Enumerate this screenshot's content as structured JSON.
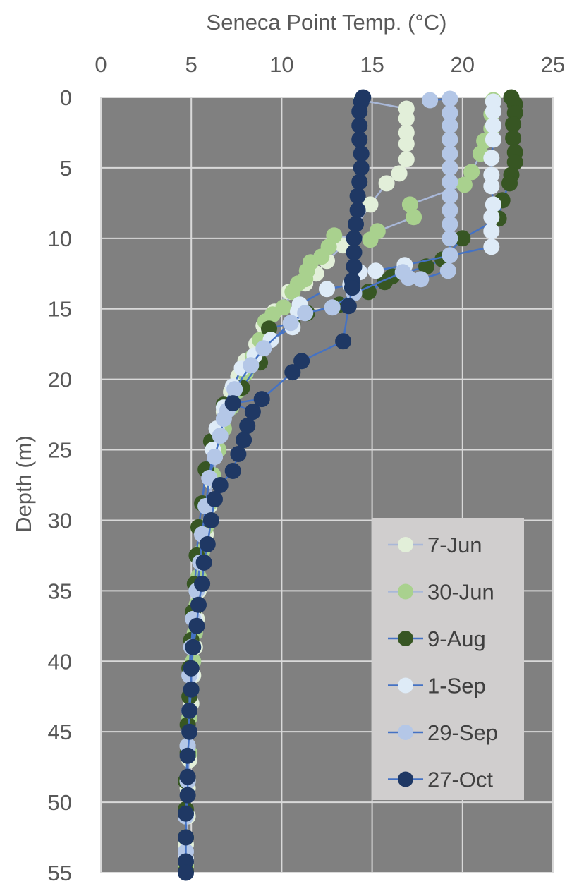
{
  "chart_data": {
    "type": "scatter",
    "title": "",
    "xlabel": "Seneca Point Temp. (°C)",
    "ylabel": "Depth (m)",
    "x_axis_position": "top",
    "y_axis_reversed": true,
    "xlim": [
      0,
      25
    ],
    "ylim": [
      0,
      55
    ],
    "x_ticks": [
      0,
      5,
      10,
      15,
      20,
      25
    ],
    "y_ticks": [
      0,
      5,
      10,
      15,
      20,
      25,
      30,
      35,
      40,
      45,
      50,
      55
    ],
    "grid": true,
    "plot_background": "#808080",
    "grid_color": "#d9d9d9",
    "legend_position": "bottom-right",
    "legend_background": "#d0cece",
    "series": [
      {
        "name": "7-Jun",
        "color": "#e2efd9",
        "line_color": "#a9b8d8",
        "points": [
          [
            14.4,
            0.2
          ],
          [
            16.9,
            0.8
          ],
          [
            16.9,
            1.5
          ],
          [
            16.9,
            2.5
          ],
          [
            16.9,
            3.3
          ],
          [
            16.9,
            4.4
          ],
          [
            16.5,
            5.4
          ],
          [
            15.8,
            6.1
          ],
          [
            14.9,
            7.6
          ],
          [
            13.4,
            10.5
          ],
          [
            12.5,
            11.6
          ],
          [
            11.9,
            12.5
          ],
          [
            11.3,
            13.2
          ],
          [
            10.4,
            13.8
          ],
          [
            9.6,
            15.2
          ],
          [
            9.0,
            16.2
          ],
          [
            8.6,
            17.5
          ],
          [
            8.0,
            18.7
          ],
          [
            7.6,
            19.8
          ],
          [
            7.2,
            20.9
          ],
          [
            6.8,
            22.3
          ],
          [
            6.5,
            23.9
          ],
          [
            6.3,
            25.5
          ],
          [
            6.1,
            27.2
          ],
          [
            6.0,
            29.0
          ],
          [
            5.8,
            31.0
          ],
          [
            5.6,
            33.0
          ],
          [
            5.4,
            35.0
          ],
          [
            5.3,
            37.0
          ],
          [
            5.2,
            39.0
          ],
          [
            5.1,
            41.0
          ],
          [
            5.0,
            43.0
          ],
          [
            4.9,
            45.0
          ],
          [
            4.9,
            47.0
          ],
          [
            4.8,
            49.0
          ],
          [
            4.8,
            51.0
          ],
          [
            4.7,
            53.0
          ],
          [
            4.7,
            54.5
          ]
        ]
      },
      {
        "name": "30-Jun",
        "color": "#a9d18e",
        "line_color": "#a9b8d8",
        "points": [
          [
            21.7,
            0.2
          ],
          [
            21.6,
            1.2
          ],
          [
            21.6,
            2.2
          ],
          [
            21.2,
            3.1
          ],
          [
            21.0,
            4.0
          ],
          [
            20.5,
            5.3
          ],
          [
            20.1,
            6.2
          ],
          [
            17.1,
            7.6
          ],
          [
            17.3,
            8.5
          ],
          [
            15.3,
            9.5
          ],
          [
            14.9,
            10.1
          ],
          [
            12.9,
            9.8
          ],
          [
            12.6,
            10.6
          ],
          [
            12.2,
            11.3
          ],
          [
            11.6,
            11.7
          ],
          [
            11.4,
            12.3
          ],
          [
            11.3,
            12.9
          ],
          [
            10.9,
            13.2
          ],
          [
            10.6,
            13.8
          ],
          [
            10.1,
            14.9
          ],
          [
            9.5,
            15.4
          ],
          [
            9.1,
            15.9
          ],
          [
            8.8,
            17.2
          ],
          [
            8.4,
            18.4
          ],
          [
            8.0,
            19.6
          ],
          [
            7.6,
            20.8
          ],
          [
            7.2,
            22.0
          ],
          [
            6.8,
            23.5
          ],
          [
            6.5,
            25.0
          ],
          [
            6.2,
            26.8
          ],
          [
            6.0,
            28.8
          ],
          [
            5.8,
            30.5
          ],
          [
            5.6,
            32.2
          ],
          [
            5.4,
            34.0
          ],
          [
            5.3,
            36.0
          ],
          [
            5.2,
            38.0
          ],
          [
            5.1,
            40.0
          ],
          [
            5.0,
            42.0
          ],
          [
            4.9,
            44.0
          ],
          [
            4.9,
            46.5
          ],
          [
            4.8,
            48.5
          ],
          [
            4.7,
            50.5
          ],
          [
            4.7,
            52.5
          ],
          [
            4.7,
            54.5
          ]
        ]
      },
      {
        "name": "9-Aug",
        "color": "#375623",
        "line_color": "#4472c4",
        "points": [
          [
            22.7,
            0.0
          ],
          [
            22.9,
            0.5
          ],
          [
            22.9,
            1.1
          ],
          [
            22.8,
            1.9
          ],
          [
            22.8,
            2.9
          ],
          [
            22.9,
            3.9
          ],
          [
            22.9,
            4.6
          ],
          [
            22.7,
            5.5
          ],
          [
            22.6,
            6.1
          ],
          [
            22.2,
            7.3
          ],
          [
            22.0,
            8.6
          ],
          [
            20.0,
            10.0
          ],
          [
            18.9,
            11.5
          ],
          [
            18.0,
            12.0
          ],
          [
            16.1,
            12.7
          ],
          [
            15.7,
            13.1
          ],
          [
            14.8,
            13.8
          ],
          [
            13.2,
            14.7
          ],
          [
            11.4,
            15.3
          ],
          [
            10.6,
            16.0
          ],
          [
            9.3,
            16.4
          ],
          [
            8.8,
            18.8
          ],
          [
            7.8,
            20.6
          ],
          [
            6.8,
            21.8
          ],
          [
            6.1,
            24.4
          ],
          [
            5.8,
            26.4
          ],
          [
            5.6,
            28.8
          ],
          [
            5.4,
            30.5
          ],
          [
            5.3,
            32.5
          ],
          [
            5.2,
            34.5
          ],
          [
            5.1,
            36.5
          ],
          [
            5.0,
            38.5
          ],
          [
            4.9,
            40.5
          ],
          [
            4.9,
            42.5
          ],
          [
            4.8,
            44.5
          ],
          [
            4.8,
            46.5
          ],
          [
            4.7,
            48.5
          ],
          [
            4.7,
            50.5
          ],
          [
            4.7,
            52.5
          ],
          [
            4.7,
            54.9
          ]
        ]
      },
      {
        "name": "1-Sep",
        "color": "#deebf7",
        "line_color": "#4472c4",
        "points": [
          [
            21.7,
            0.3
          ],
          [
            21.7,
            1.0
          ],
          [
            21.7,
            2.0
          ],
          [
            21.7,
            3.0
          ],
          [
            21.6,
            4.3
          ],
          [
            21.6,
            5.5
          ],
          [
            21.6,
            6.3
          ],
          [
            21.7,
            7.6
          ],
          [
            21.6,
            8.5
          ],
          [
            21.6,
            9.5
          ],
          [
            21.6,
            10.6
          ],
          [
            16.8,
            11.9
          ],
          [
            15.2,
            12.3
          ],
          [
            14.3,
            12.4
          ],
          [
            13.8,
            13.3
          ],
          [
            12.5,
            13.6
          ],
          [
            11.0,
            14.7
          ],
          [
            10.9,
            15.2
          ],
          [
            10.6,
            16.3
          ],
          [
            9.4,
            17.2
          ],
          [
            8.5,
            18.3
          ],
          [
            7.8,
            19.2
          ],
          [
            7.3,
            20.5
          ],
          [
            6.8,
            22.0
          ],
          [
            6.4,
            23.5
          ],
          [
            6.2,
            25.0
          ],
          [
            6.0,
            27.0
          ],
          [
            5.8,
            29.0
          ],
          [
            5.6,
            31.0
          ],
          [
            5.5,
            33.0
          ],
          [
            5.3,
            35.0
          ],
          [
            5.2,
            37.0
          ],
          [
            5.1,
            39.0
          ],
          [
            5.0,
            41.0
          ],
          [
            4.9,
            43.5
          ],
          [
            4.8,
            46.0
          ],
          [
            4.8,
            48.5
          ],
          [
            4.7,
            51.0
          ],
          [
            4.7,
            54.0
          ]
        ]
      },
      {
        "name": "29-Sep",
        "color": "#b4c7e7",
        "line_color": "#4472c4",
        "points": [
          [
            18.2,
            0.2
          ],
          [
            19.3,
            0.1
          ],
          [
            19.3,
            1.1
          ],
          [
            19.3,
            2.0
          ],
          [
            19.3,
            3.0
          ],
          [
            19.3,
            4.0
          ],
          [
            19.3,
            5.0
          ],
          [
            19.3,
            6.0
          ],
          [
            19.3,
            7.0
          ],
          [
            19.3,
            8.0
          ],
          [
            19.3,
            9.0
          ],
          [
            19.3,
            10.0
          ],
          [
            19.3,
            11.2
          ],
          [
            19.2,
            12.3
          ],
          [
            17.7,
            12.9
          ],
          [
            17.0,
            12.8
          ],
          [
            16.7,
            12.4
          ],
          [
            14.0,
            13.9
          ],
          [
            12.8,
            14.9
          ],
          [
            11.3,
            15.3
          ],
          [
            10.5,
            16.0
          ],
          [
            9.0,
            17.8
          ],
          [
            8.3,
            19.0
          ],
          [
            7.4,
            20.7
          ],
          [
            7.0,
            22.2
          ],
          [
            6.8,
            22.8
          ],
          [
            6.6,
            24.0
          ],
          [
            6.3,
            25.5
          ],
          [
            6.0,
            27.0
          ],
          [
            5.8,
            29.0
          ],
          [
            5.6,
            31.0
          ],
          [
            5.5,
            33.0
          ],
          [
            5.3,
            35.0
          ],
          [
            5.1,
            37.0
          ],
          [
            5.0,
            39.0
          ],
          [
            4.9,
            41.0
          ],
          [
            4.9,
            43.5
          ],
          [
            4.8,
            46.0
          ],
          [
            4.8,
            48.5
          ],
          [
            4.7,
            51.0
          ],
          [
            4.7,
            53.5
          ]
        ]
      },
      {
        "name": "27-Oct",
        "color": "#1f3864",
        "line_color": "#4472c4",
        "points": [
          [
            14.5,
            0.0
          ],
          [
            14.4,
            0.3
          ],
          [
            14.3,
            1.0
          ],
          [
            14.3,
            2.0
          ],
          [
            14.3,
            3.0
          ],
          [
            14.4,
            4.0
          ],
          [
            14.4,
            5.0
          ],
          [
            14.3,
            6.0
          ],
          [
            14.2,
            7.0
          ],
          [
            14.2,
            8.0
          ],
          [
            14.1,
            9.0
          ],
          [
            14.0,
            10.0
          ],
          [
            14.0,
            11.0
          ],
          [
            14.0,
            12.0
          ],
          [
            13.9,
            13.0
          ],
          [
            13.9,
            13.5
          ],
          [
            13.7,
            14.8
          ],
          [
            13.4,
            17.3
          ],
          [
            11.1,
            18.7
          ],
          [
            10.6,
            19.5
          ],
          [
            8.9,
            21.4
          ],
          [
            7.3,
            21.7
          ],
          [
            8.4,
            22.3
          ],
          [
            8.1,
            23.3
          ],
          [
            7.9,
            24.3
          ],
          [
            7.6,
            25.3
          ],
          [
            7.3,
            26.5
          ],
          [
            6.6,
            27.5
          ],
          [
            6.3,
            28.5
          ],
          [
            6.1,
            30.0
          ],
          [
            5.9,
            31.7
          ],
          [
            5.7,
            33.0
          ],
          [
            5.6,
            34.5
          ],
          [
            5.4,
            36.0
          ],
          [
            5.3,
            37.5
          ],
          [
            5.1,
            39.0
          ],
          [
            5.0,
            40.5
          ],
          [
            5.0,
            42.0
          ],
          [
            4.9,
            43.5
          ],
          [
            4.9,
            45.0
          ],
          [
            4.8,
            46.7
          ],
          [
            4.8,
            48.2
          ],
          [
            4.8,
            49.5
          ],
          [
            4.7,
            50.8
          ],
          [
            4.7,
            52.5
          ],
          [
            4.7,
            54.2
          ],
          [
            4.7,
            55.0
          ]
        ]
      }
    ]
  }
}
